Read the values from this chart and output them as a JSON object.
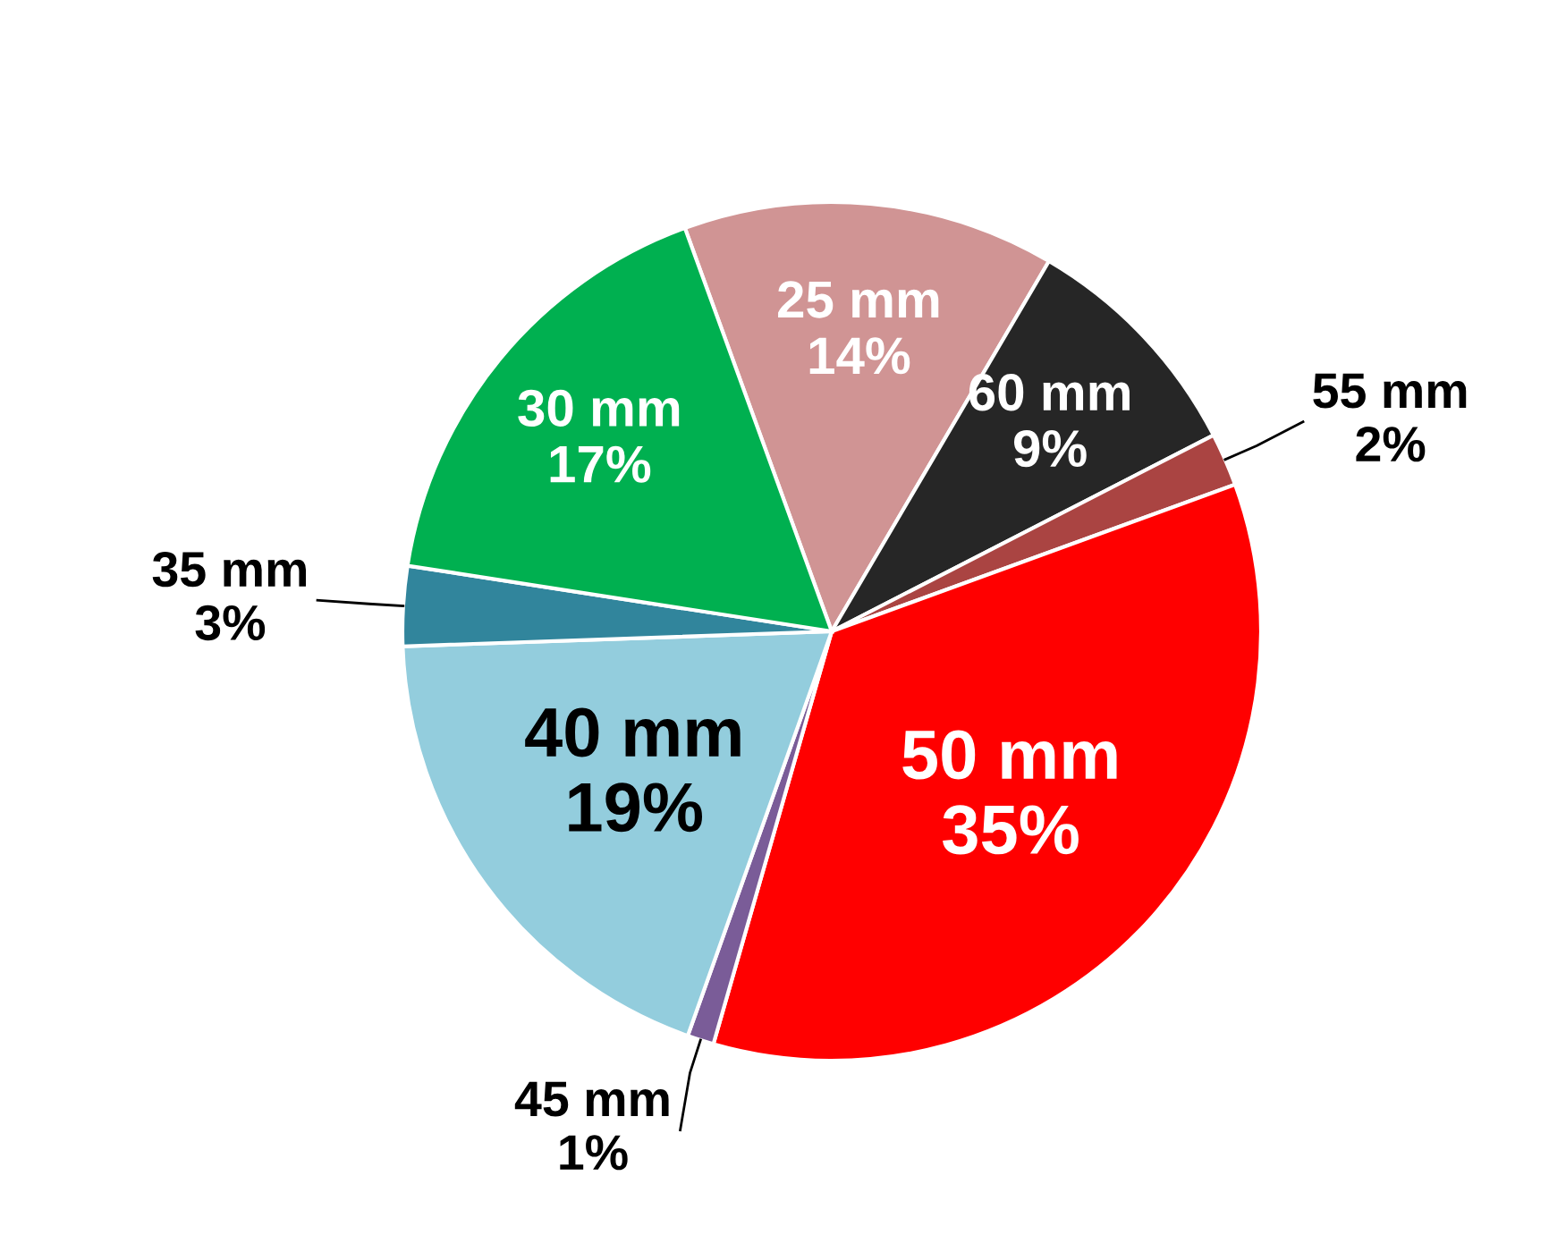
{
  "chart_data": {
    "type": "pie",
    "categories": [
      "25 mm",
      "60 mm",
      "55 mm",
      "50 mm",
      "45 mm",
      "40 mm",
      "35 mm",
      "30 mm"
    ],
    "values": [
      14,
      9,
      2,
      35,
      1,
      19,
      3,
      17
    ],
    "colors": [
      "#d09494",
      "#262626",
      "#aa4442",
      "#ff0000",
      "#7a5c98",
      "#93cddd",
      "#31859c",
      "#00b050"
    ],
    "value_labels": [
      "14%",
      "9%",
      "2%",
      "35%",
      "1%",
      "19%",
      "3%",
      "17%"
    ],
    "legend": false
  }
}
